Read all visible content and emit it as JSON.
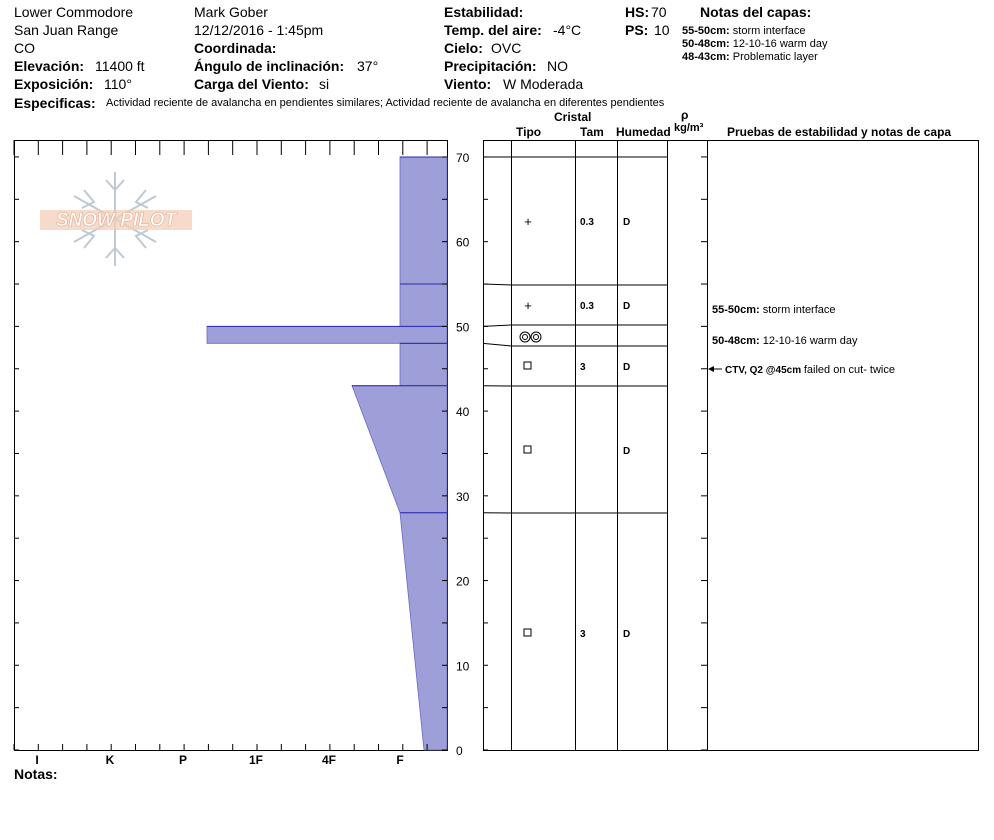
{
  "header": {
    "location": "Lower Commodore",
    "range": "San Juan Range",
    "state": "CO",
    "elevation_label": "Elevación:",
    "elevation_value": "11400 ft",
    "aspect_label": "Exposición:",
    "aspect_value": "110°",
    "observer": "Mark  Gober",
    "datetime": "12/12/2016 - 1:45pm",
    "coord_label": "Coordinada:",
    "slope_label": "Ángulo de inclinación:",
    "slope_value": "37°",
    "wind_load_label": "Carga del Viento:",
    "wind_load_value": "si",
    "stability_label": "Estabilidad:",
    "air_temp_label": "Temp. del aire:",
    "air_temp_value": "-4°C",
    "sky_label": "Cielo:",
    "sky_value": "OVC",
    "precip_label": "Precipitación:",
    "precip_value": "NO",
    "wind_label": "Viento:",
    "wind_value": "W Moderada",
    "hs_label": "HS:",
    "hs_value": "70",
    "ps_label": "PS:",
    "ps_value": "10",
    "layer_notes_title": "Notas del capas:",
    "layer_notes": [
      {
        "range": "55-50cm:",
        "text": "storm interface"
      },
      {
        "range": "50-48cm:",
        "text": "12-10-16 warm day"
      },
      {
        "range": "48-43cm:",
        "text": "Problematic layer"
      }
    ],
    "specifics_label": "Especificas:",
    "specifics_value": "Actividad reciente de avalancha en pendientes similares; Actividad reciente de avalancha en diferentes pendientes",
    "notes_label": "Notas:"
  },
  "logo_text": "SNOW PILOT",
  "table_headers": {
    "crystal": "Cristal",
    "type": "Tipo",
    "size": "Tam",
    "moisture": "Humedad",
    "rho": "ρ",
    "density_unit": "kg/m³",
    "tests": "Pruebas de estabilidad y notas de capa"
  },
  "colors": {
    "hardness_fill": "#9e9ed8",
    "hardness_stroke": "#2a2ab0"
  },
  "chart_data": {
    "type": "area",
    "description_axis": "height (cm) vs hand hardness",
    "y_ticks": [
      0,
      10,
      20,
      30,
      40,
      50,
      60,
      70
    ],
    "ylim": [
      0,
      70
    ],
    "x_tick_labels": [
      "I",
      "K",
      "P",
      "1F",
      "4F",
      "F"
    ],
    "hardness_profile": [
      {
        "top": 70,
        "bottom": 55,
        "hardness": "F"
      },
      {
        "top": 55,
        "bottom": 50,
        "hardness": "F"
      },
      {
        "top": 50,
        "bottom": 48,
        "hardness": "P+"
      },
      {
        "top": 48,
        "bottom": 43,
        "hardness": "F"
      },
      {
        "top": 43,
        "bottom": 28,
        "hardness_top": "4F+",
        "hardness_bottom": "F"
      },
      {
        "top": 28,
        "bottom": 0,
        "hardness_top": "F",
        "hardness_bottom": "F-"
      }
    ],
    "layers": [
      {
        "top": 70,
        "bottom": 55,
        "grain": "+",
        "size": "0.3",
        "moisture": "D"
      },
      {
        "top": 55,
        "bottom": 50,
        "grain": "+",
        "size": "0.3",
        "moisture": "D"
      },
      {
        "top": 50,
        "bottom": 48,
        "grain": "◎◎",
        "size": "",
        "moisture": ""
      },
      {
        "top": 48,
        "bottom": 43,
        "grain": "□",
        "size": "3",
        "moisture": "D"
      },
      {
        "top": 43,
        "bottom": 28,
        "grain": "□",
        "size": "",
        "moisture": "D"
      },
      {
        "top": 28,
        "bottom": 0,
        "grain": "□",
        "size": "3",
        "moisture": "D"
      }
    ],
    "layer_notes": [
      {
        "at": 50,
        "range": "55-50cm:",
        "text": "storm interface"
      },
      {
        "at": 48,
        "range": "50-48cm:",
        "text": "12-10-16 warm day"
      }
    ],
    "stability_test": {
      "at": 45,
      "test": "CTV, Q2 @45cm",
      "text": "failed on cut- twice"
    }
  }
}
